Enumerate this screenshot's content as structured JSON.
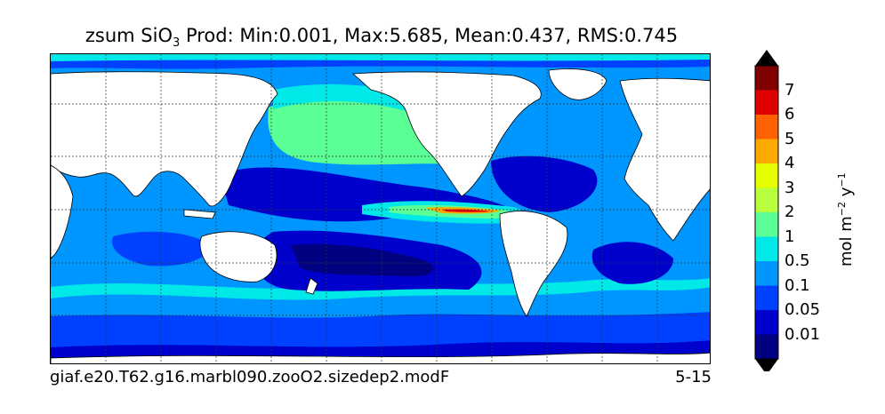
{
  "title": {
    "prefix": "zsum SiO",
    "subscript": "3",
    "suffix": "  Prod: Min:0.001, Max:5.685, Mean:0.437, RMS:0.745"
  },
  "caption": {
    "case_name": "giaf.e20.T62.g16.marbl090.zooO2.sizedep2.modF",
    "period": "5-15"
  },
  "colorbar": {
    "label_base": "mol m",
    "label_exp1": "−2",
    "label_mid": "  y",
    "label_exp2": "−1",
    "ticks": [
      "7",
      "6",
      "5",
      "4",
      "3",
      "2",
      "1",
      "0.5",
      "0.1",
      "0.05",
      "0.01"
    ],
    "colors": [
      "#800000",
      "#e00000",
      "#ff6000",
      "#ffa800",
      "#e6ff00",
      "#b8ff40",
      "#5aff96",
      "#00e8e8",
      "#0096ff",
      "#0040ff",
      "#0000cd",
      "#000080"
    ],
    "over_color": "#000000",
    "under_color": "#000000"
  },
  "map": {
    "land_color": "#ffffff",
    "grid": true
  }
}
